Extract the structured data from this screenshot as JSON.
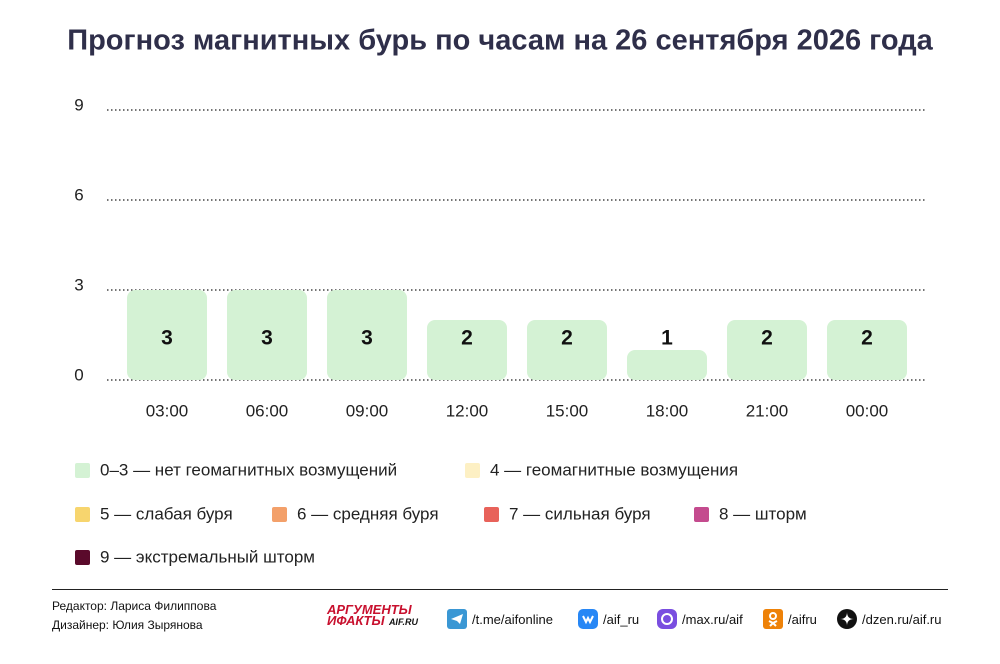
{
  "chart_data": {
    "type": "bar",
    "title": "Прогноз магнитных бурь по часам на 26 сентября 2026 года",
    "categories": [
      "03:00",
      "06:00",
      "09:00",
      "12:00",
      "15:00",
      "18:00",
      "21:00",
      "00:00"
    ],
    "values": [
      3,
      3,
      3,
      2,
      2,
      1,
      2,
      2
    ],
    "color": "#d4f2d4",
    "ylim": [
      0,
      9
    ],
    "yticks": [
      0,
      3,
      6,
      9
    ],
    "grid": true,
    "legend": [
      {
        "label": "0–3 — нет геомагнитных возмущений",
        "color": "#d4f2d4"
      },
      {
        "label": "4 — геомагнитные возмущения",
        "color": "#fdf0c4"
      },
      {
        "label": "5 — слабая буря",
        "color": "#f7d56e"
      },
      {
        "label": "6 — средняя буря",
        "color": "#f3a06a"
      },
      {
        "label": "7 — сильная буря",
        "color": "#e8625a"
      },
      {
        "label": "8 — шторм",
        "color": "#c44b8e"
      },
      {
        "label": "9 — экстремальный шторм",
        "color": "#5a0a2b"
      }
    ]
  },
  "footer": {
    "editor": "Редактор: Лариса Филиппова",
    "designer": "Дизайнер: Юлия Зырянова",
    "logo": [
      "АРГУМЕНТЫ",
      "ИФАКТЫ",
      "AIF.RU"
    ],
    "links": [
      "/t.me/aifonline",
      "/aif_ru",
      "/max.ru/aif",
      "/aifru",
      "/dzen.ru/aif.ru"
    ]
  }
}
